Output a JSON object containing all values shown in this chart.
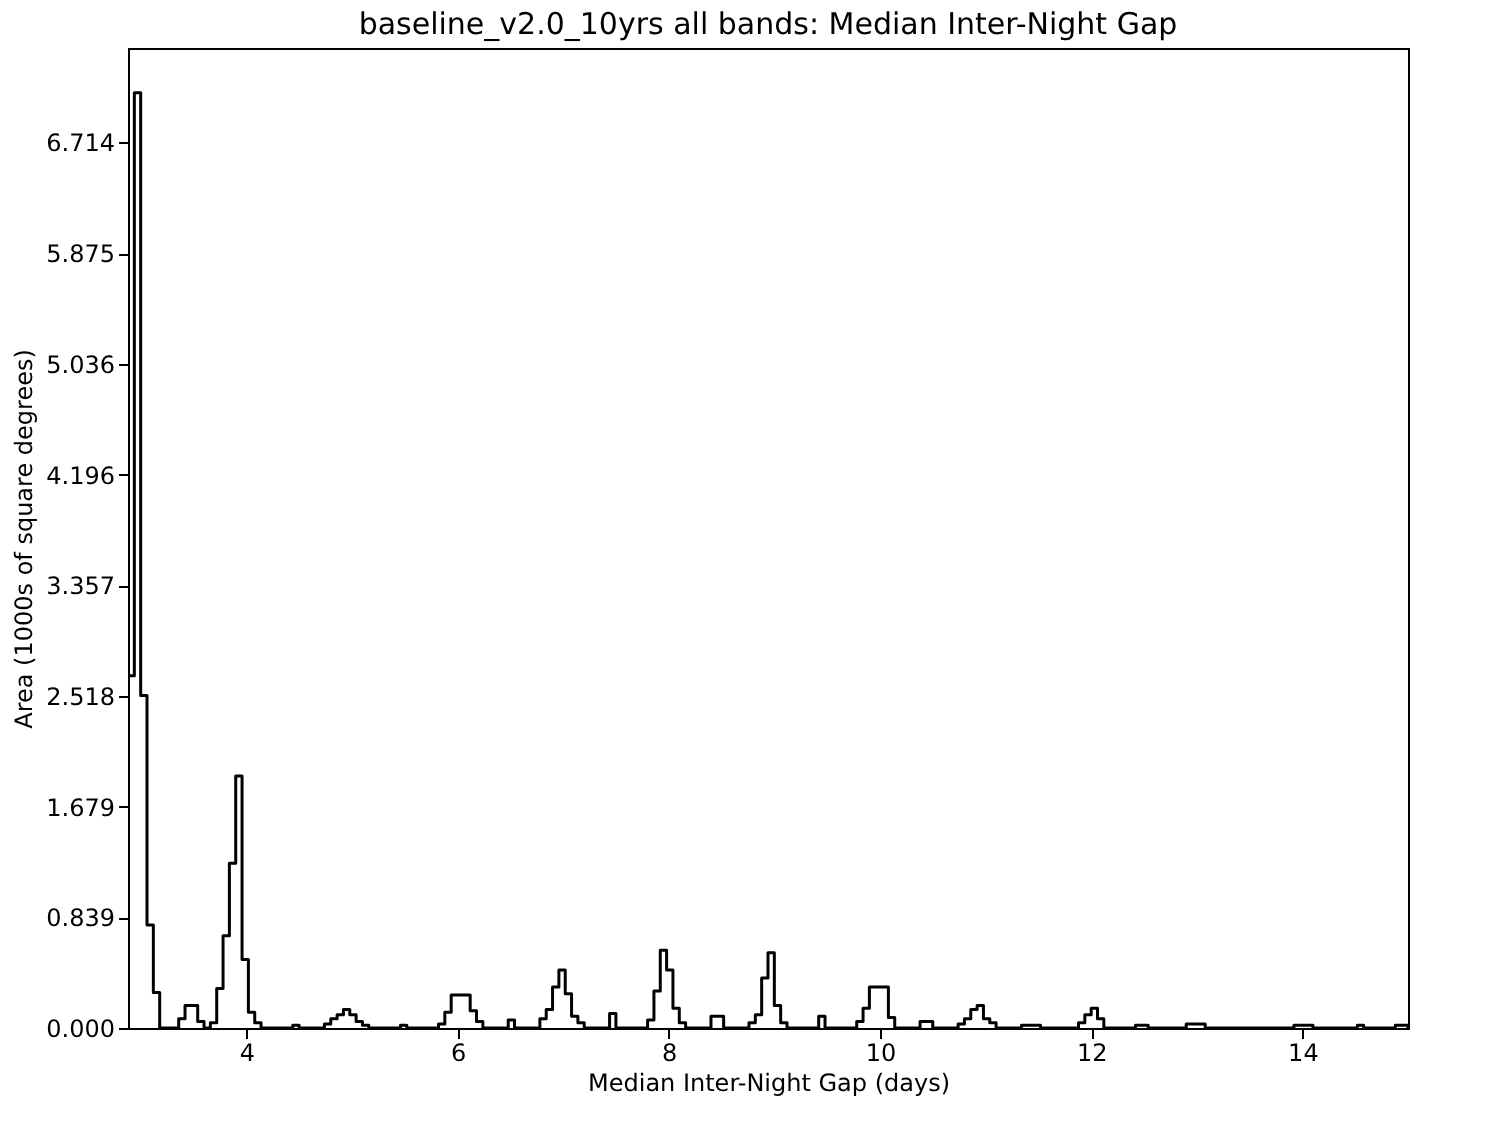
{
  "chart_data": {
    "type": "histogram",
    "title": "baseline_v2.0_10yrs all bands: Median Inter-Night Gap",
    "xlabel": "Median Inter-Night Gap (days)",
    "ylabel": "Area (1000s of square degrees)",
    "color": "#000000",
    "bins": [
      2.88,
      2.94,
      3.0,
      3.06,
      3.12,
      3.18,
      3.24,
      3.3,
      3.36,
      3.42,
      3.48,
      3.54,
      3.6,
      3.66,
      3.72,
      3.78,
      3.84,
      3.9,
      3.96,
      4.02,
      4.08,
      4.14,
      4.2,
      4.26,
      4.32,
      4.38,
      4.44,
      4.5,
      4.56,
      4.62,
      4.68,
      4.74,
      4.8,
      4.86,
      4.92,
      4.98,
      5.04,
      5.1,
      5.16,
      5.22,
      5.28,
      5.34,
      5.4,
      5.46,
      5.52,
      5.58,
      5.64,
      5.7,
      5.76,
      5.82,
      5.88,
      5.94,
      6.0,
      6.06,
      6.12,
      6.18,
      6.24,
      6.3,
      6.36,
      6.42,
      6.48,
      6.54,
      6.6,
      6.66,
      6.72,
      6.78,
      6.84,
      6.9,
      6.96,
      7.02,
      7.08,
      7.14,
      7.2,
      7.26,
      7.32,
      7.38,
      7.44,
      7.5,
      7.56,
      7.62,
      7.68,
      7.74,
      7.8,
      7.86,
      7.92,
      7.98,
      8.04,
      8.1,
      8.16,
      8.22,
      8.28,
      8.34,
      8.4,
      8.46,
      8.52,
      8.58,
      8.64,
      8.7,
      8.76,
      8.82,
      8.88,
      8.94,
      9.0,
      9.06,
      9.12,
      9.18,
      9.24,
      9.3,
      9.36,
      9.42,
      9.48,
      9.54,
      9.6,
      9.66,
      9.72,
      9.78,
      9.84,
      9.9,
      9.96,
      10.02,
      10.08,
      10.14,
      10.2,
      10.26,
      10.32,
      10.38,
      10.44,
      10.5,
      10.56,
      10.62,
      10.68,
      10.74,
      10.8,
      10.86,
      10.92,
      10.98,
      11.04,
      11.1,
      11.16,
      11.22,
      11.28,
      11.34,
      11.4,
      11.46,
      11.52,
      11.58,
      11.64,
      11.7,
      11.76,
      11.82,
      11.88,
      11.94,
      12.0,
      12.06,
      12.12,
      12.18,
      12.24,
      12.3,
      12.36,
      12.42,
      12.48,
      12.54,
      12.6,
      12.66,
      12.72,
      12.78,
      12.84,
      12.9,
      12.96,
      13.02,
      13.08,
      13.14,
      13.2,
      13.26,
      13.32,
      13.38,
      13.44,
      13.5,
      13.56,
      13.62,
      13.68,
      13.74,
      13.8,
      13.86,
      13.92,
      13.98,
      14.04,
      14.1,
      14.16,
      14.22,
      14.28,
      14.34,
      14.4,
      14.46,
      14.52,
      14.58,
      14.64,
      14.7,
      14.76,
      14.82,
      14.88,
      14.94,
      15.0
    ],
    "values": [
      2.67,
      7.09,
      2.52,
      0.78,
      0.27,
      0,
      0,
      0,
      0.07,
      0.17,
      0.17,
      0.05,
      0,
      0.04,
      0.3,
      0.7,
      1.25,
      1.91,
      0.52,
      0.12,
      0.04,
      0,
      0,
      0,
      0,
      0,
      0.02,
      0,
      0,
      0,
      0,
      0.03,
      0.07,
      0.1,
      0.14,
      0.1,
      0.05,
      0.02,
      0,
      0,
      0,
      0,
      0,
      0.02,
      0,
      0,
      0,
      0,
      0,
      0.03,
      0.12,
      0.25,
      0.25,
      0.25,
      0.13,
      0.05,
      0,
      0,
      0,
      0,
      0.06,
      0,
      0,
      0,
      0,
      0.07,
      0.14,
      0.31,
      0.44,
      0.26,
      0.09,
      0.04,
      0,
      0,
      0,
      0,
      0.11,
      0,
      0,
      0,
      0,
      0,
      0.06,
      0.28,
      0.59,
      0.44,
      0.15,
      0.04,
      0,
      0,
      0,
      0,
      0.09,
      0.09,
      0,
      0,
      0,
      0,
      0.04,
      0.1,
      0.38,
      0.57,
      0.17,
      0.04,
      0,
      0,
      0,
      0,
      0,
      0.09,
      0,
      0,
      0,
      0,
      0,
      0.05,
      0.15,
      0.31,
      0.31,
      0.31,
      0.08,
      0,
      0,
      0,
      0,
      0.05,
      0.05,
      0,
      0,
      0,
      0,
      0.03,
      0.07,
      0.14,
      0.17,
      0.07,
      0.04,
      0,
      0,
      0,
      0,
      0.02,
      0.02,
      0.02,
      0,
      0,
      0,
      0,
      0,
      0,
      0.04,
      0.1,
      0.15,
      0.07,
      0,
      0,
      0,
      0,
      0,
      0.02,
      0.02,
      0,
      0,
      0,
      0,
      0,
      0,
      0.03,
      0.03,
      0.03,
      0,
      0,
      0,
      0,
      0,
      0,
      0,
      0,
      0,
      0,
      0,
      0,
      0,
      0,
      0.02,
      0.02,
      0.02,
      0,
      0,
      0,
      0,
      0,
      0,
      0,
      0.02,
      0,
      0,
      0,
      0,
      0,
      0.02,
      0.02
    ],
    "xlim": [
      2.88,
      15.0
    ],
    "xticks": [
      4,
      6,
      8,
      10,
      12,
      14
    ],
    "ylim": [
      0,
      7.43
    ],
    "yticks": [
      {
        "value": 0,
        "label": "0.000"
      },
      0.839,
      1.679,
      2.518,
      3.357,
      4.196,
      5.036,
      5.875,
      6.714
    ],
    "grid": false
  }
}
